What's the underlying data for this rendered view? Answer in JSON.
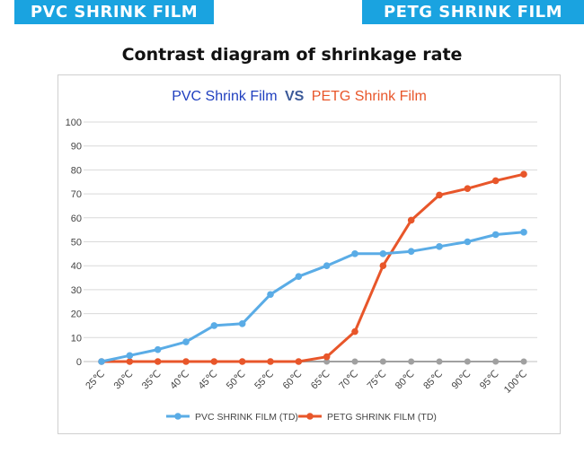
{
  "banners": {
    "left": "PVC SHRINK FILM",
    "right": "PETG SHRINK FILM"
  },
  "heading": "Contrast diagram of shrinkage rate",
  "colors": {
    "banner": "#1aa3e0",
    "pvc": "#5aace6",
    "petg": "#e8562a",
    "baseline": "#a0a0a0",
    "grid": "#d9d9d9",
    "title_pvc": "#1f3fbf",
    "title_vs": "#3c5a99"
  },
  "chart_data": {
    "type": "line",
    "title": {
      "part1": "PVC Shrink Film",
      "vs": "VS",
      "part2": "PETG Shrink Film"
    },
    "categories": [
      "25℃",
      "30℃",
      "35℃",
      "40℃",
      "45℃",
      "50℃",
      "55℃",
      "60℃",
      "65℃",
      "70℃",
      "75℃",
      "80℃",
      "85℃",
      "90℃",
      "95℃",
      "100℃"
    ],
    "ylim": [
      0,
      100
    ],
    "yticks": [
      0,
      10,
      20,
      30,
      40,
      50,
      60,
      70,
      80,
      90,
      100
    ],
    "grid": true,
    "legend_position": "bottom",
    "series": [
      {
        "name": "PVC SHRINK FILM (TD)",
        "values": [
          0,
          2.5,
          5,
          8.2,
          15,
          15.8,
          28,
          35.5,
          40,
          45,
          45,
          46,
          48,
          50,
          53,
          54
        ]
      },
      {
        "name": "PETG SHRINK FILM (TD)",
        "values": [
          0,
          0,
          0,
          0,
          0,
          0,
          0,
          0,
          2,
          12.5,
          40,
          59,
          69.5,
          72.2,
          75.5,
          78.2
        ]
      }
    ],
    "baseline_values": [
      0,
      0,
      0,
      0,
      0,
      0,
      0,
      0,
      0,
      0,
      0,
      0,
      0,
      0,
      0,
      0
    ]
  }
}
